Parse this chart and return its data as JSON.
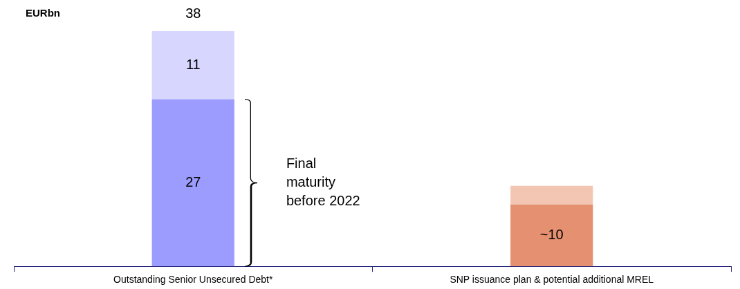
{
  "chart_data": {
    "type": "bar",
    "stacked": true,
    "categories": [
      "Outstanding Senior Unsecured Debt*",
      "SNP issuance plan & potential additional MREL"
    ],
    "series": [
      {
        "colors": [
          "#9c9cff",
          "#e59070"
        ],
        "values": [
          27,
          10
        ],
        "value_labels": [
          "27",
          "~10"
        ]
      },
      {
        "colors": [
          "#d7d6ff",
          "#f3c6b3"
        ],
        "values": [
          11,
          3
        ],
        "value_labels": [
          "11",
          null
        ]
      }
    ],
    "totals": [
      "38",
      null
    ],
    "annotations": [
      "EURbn",
      "Final maturity before 2022"
    ],
    "grid": false,
    "legend": false
  }
}
